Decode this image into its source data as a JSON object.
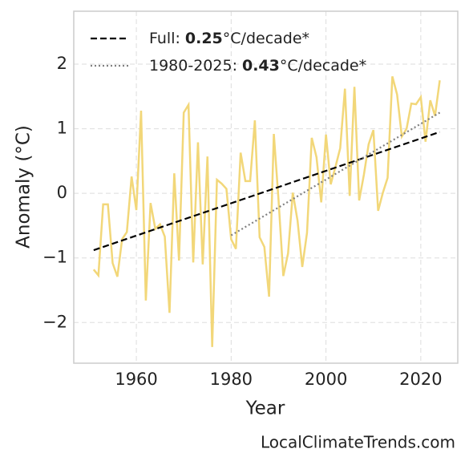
{
  "chart_data": {
    "type": "line",
    "x_label": "Year",
    "y_label": "Anomaly (°C)",
    "watermark": "LocalClimateTrends.com",
    "xlim": [
      1946.8,
      2027.8
    ],
    "ylim": [
      -2.63,
      2.82
    ],
    "xticks": [
      1960,
      1980,
      2000,
      2020
    ],
    "yticks": [
      {
        "value": -2,
        "label": "−2"
      },
      {
        "value": -1,
        "label": "−1"
      },
      0,
      1,
      2
    ],
    "grid": true,
    "legend": "upper left",
    "series": [
      {
        "color": "#f2d779",
        "style": "solid",
        "x": [
          1951,
          1952,
          1953,
          1954,
          1955,
          1956,
          1957,
          1958,
          1959,
          1960,
          1961,
          1962,
          1963,
          1964,
          1965,
          1966,
          1967,
          1968,
          1969,
          1970,
          1971,
          1972,
          1973,
          1974,
          1975,
          1976,
          1977,
          1978,
          1979,
          1980,
          1981,
          1982,
          1983,
          1984,
          1985,
          1986,
          1987,
          1988,
          1989,
          1990,
          1991,
          1992,
          1993,
          1994,
          1995,
          1996,
          1997,
          1998,
          1999,
          2000,
          2001,
          2002,
          2003,
          2004,
          2005,
          2006,
          2007,
          2008,
          2009,
          2010,
          2011,
          2012,
          2013,
          2014,
          2015,
          2016,
          2017,
          2018,
          2019,
          2020,
          2021,
          2022,
          2023,
          2024
        ],
        "values": [
          -1.18,
          -1.27,
          -0.17,
          -0.17,
          -1.08,
          -1.29,
          -0.71,
          -0.6,
          0.26,
          -0.26,
          1.28,
          -1.66,
          -0.15,
          -0.55,
          -0.48,
          -0.67,
          -1.85,
          0.31,
          -1.04,
          1.25,
          1.37,
          -1.07,
          0.79,
          -1.1,
          0.57,
          -2.38,
          0.21,
          0.15,
          0.07,
          -0.71,
          -0.86,
          0.63,
          0.19,
          0.19,
          1.13,
          -0.68,
          -0.83,
          -1.6,
          0.92,
          -0.11,
          -1.28,
          -0.93,
          0.01,
          -0.42,
          -1.14,
          -0.61,
          0.86,
          0.56,
          -0.14,
          0.91,
          0.14,
          0.41,
          0.7,
          1.62,
          -0.04,
          1.65,
          -0.11,
          0.29,
          0.76,
          0.98,
          -0.27,
          0.01,
          0.24,
          1.81,
          1.53,
          0.88,
          1.0,
          1.39,
          1.38,
          1.49,
          0.8,
          1.44,
          1.2,
          1.75
        ]
      },
      {
        "color": "#000000",
        "style": "dashed",
        "label_parts": [
          "Full:",
          "0.25",
          "°C/decade*"
        ],
        "x": [
          1951,
          2024
        ],
        "values": [
          -0.88,
          0.95
        ]
      },
      {
        "color": "#808080",
        "style": "dotted",
        "label_parts": [
          "1980-2025:",
          "0.43",
          "°C/decade*"
        ],
        "x": [
          1980,
          2024
        ],
        "values": [
          -0.65,
          1.25
        ]
      }
    ]
  }
}
